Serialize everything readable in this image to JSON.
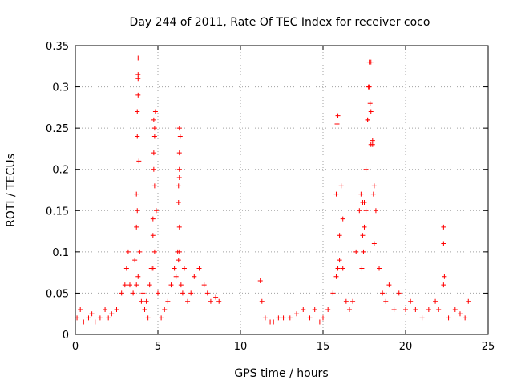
{
  "chart_data": {
    "type": "scatter",
    "title": "Day 244 of 2011, Rate Of TEC Index for receiver coco",
    "xlabel": "GPS time / hours",
    "ylabel": "ROTI / TECUs",
    "xlim": [
      0,
      25
    ],
    "ylim": [
      0,
      0.35
    ],
    "xticks": [
      "0",
      "5",
      "10",
      "15",
      "20",
      "25"
    ],
    "yticks": [
      "0",
      "0.05",
      "0.1",
      "0.15",
      "0.2",
      "0.25",
      "0.3",
      "0.35"
    ],
    "grid": true,
    "marker": "plus",
    "color": "#ff0000",
    "series": [
      {
        "x": [
          0.1,
          0.3,
          0.5,
          0.8,
          1.0,
          1.2,
          1.5,
          1.8,
          2.0,
          2.2,
          2.5,
          2.8,
          3.0,
          3.1,
          3.2,
          3.3,
          3.5,
          3.6,
          3.7,
          3.75,
          3.8,
          3.85,
          3.9,
          4.0,
          4.1,
          4.2,
          4.3,
          4.4,
          4.5,
          4.6,
          4.7,
          4.75,
          4.8,
          4.85,
          4.9,
          5.0,
          5.2,
          5.4,
          5.6,
          5.8,
          6.0,
          6.1,
          6.2,
          6.25,
          6.3,
          6.35,
          6.4,
          6.5,
          6.6,
          6.8,
          7.0,
          7.2,
          7.5,
          7.8,
          8.0,
          8.2,
          8.5,
          8.7,
          3.8,
          3.8,
          3.75,
          3.8,
          3.7,
          3.8,
          4.75,
          4.8,
          4.75,
          4.8,
          4.7,
          6.3,
          6.3,
          6.25,
          6.3,
          6.3,
          6.3,
          6.25,
          3.7,
          3.75,
          4.7,
          4.8,
          11.2,
          11.3,
          11.5,
          11.8,
          12.0,
          12.3,
          12.6,
          13.0,
          13.4,
          13.8,
          14.2,
          14.5,
          14.8,
          15.0,
          15.3,
          15.6,
          15.8,
          16.0,
          16.2,
          16.4,
          16.6,
          16.8,
          17.0,
          17.2,
          17.4,
          17.5,
          17.6,
          17.7,
          17.8,
          17.9,
          18.0,
          18.1,
          18.2,
          18.4,
          18.6,
          18.8,
          19.0,
          19.3,
          19.6,
          20.0,
          20.3,
          20.6,
          21.0,
          21.4,
          21.8,
          22.0,
          22.3,
          22.6,
          23.0,
          23.3,
          23.6,
          23.8,
          15.9,
          15.85,
          15.8,
          16.1,
          16.2,
          17.9,
          17.85,
          17.8,
          17.75,
          17.7,
          17.9,
          18.0,
          18.05,
          17.6,
          17.5,
          17.4,
          17.3,
          18.1,
          22.3,
          22.3,
          22.35,
          16.0,
          15.9,
          17.35,
          17.45
        ],
        "y": [
          0.02,
          0.03,
          0.015,
          0.02,
          0.025,
          0.015,
          0.02,
          0.03,
          0.02,
          0.025,
          0.03,
          0.05,
          0.06,
          0.08,
          0.1,
          0.06,
          0.05,
          0.09,
          0.17,
          0.24,
          0.31,
          0.21,
          0.1,
          0.04,
          0.05,
          0.03,
          0.04,
          0.02,
          0.06,
          0.08,
          0.12,
          0.2,
          0.25,
          0.27,
          0.15,
          0.05,
          0.02,
          0.03,
          0.04,
          0.06,
          0.08,
          0.07,
          0.1,
          0.16,
          0.2,
          0.24,
          0.06,
          0.05,
          0.08,
          0.04,
          0.05,
          0.07,
          0.08,
          0.06,
          0.05,
          0.04,
          0.045,
          0.04,
          0.335,
          0.315,
          0.27,
          0.29,
          0.13,
          0.07,
          0.26,
          0.24,
          0.22,
          0.18,
          0.14,
          0.25,
          0.22,
          0.18,
          0.13,
          0.19,
          0.1,
          0.09,
          0.06,
          0.15,
          0.08,
          0.1,
          0.065,
          0.04,
          0.02,
          0.015,
          0.015,
          0.02,
          0.02,
          0.02,
          0.025,
          0.03,
          0.02,
          0.03,
          0.015,
          0.02,
          0.03,
          0.05,
          0.07,
          0.12,
          0.08,
          0.04,
          0.03,
          0.04,
          0.1,
          0.15,
          0.12,
          0.16,
          0.2,
          0.26,
          0.3,
          0.33,
          0.23,
          0.18,
          0.15,
          0.08,
          0.05,
          0.04,
          0.06,
          0.03,
          0.05,
          0.03,
          0.04,
          0.03,
          0.02,
          0.03,
          0.04,
          0.03,
          0.06,
          0.02,
          0.03,
          0.025,
          0.02,
          0.04,
          0.265,
          0.255,
          0.17,
          0.18,
          0.14,
          0.23,
          0.28,
          0.33,
          0.3,
          0.26,
          0.27,
          0.235,
          0.17,
          0.15,
          0.13,
          0.16,
          0.17,
          0.11,
          0.13,
          0.11,
          0.07,
          0.09,
          0.08,
          0.08,
          0.1
        ]
      }
    ]
  }
}
